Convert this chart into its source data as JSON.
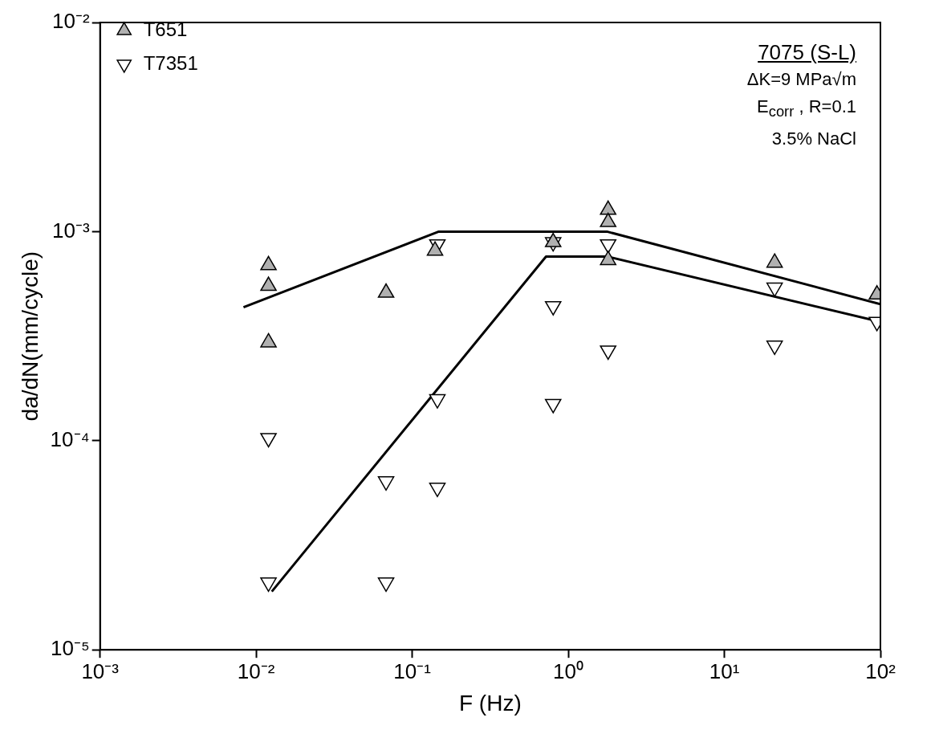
{
  "chart_data": {
    "type": "scatter",
    "xlabel": "F (Hz)",
    "ylabel": "da/dN(mm/cycle)",
    "log": "xy",
    "legend": "top left",
    "xlim": [
      0.001,
      100
    ],
    "xticks": [
      {
        "value": 0.001,
        "label": "10⁻³"
      },
      {
        "value": 0.01,
        "label": "10⁻²"
      },
      {
        "value": 0.1,
        "label": "10⁻¹"
      },
      {
        "value": 1,
        "label": "10⁰"
      },
      {
        "value": 10,
        "label": "10¹"
      },
      {
        "value": 100,
        "label": "10²"
      }
    ],
    "ylim": [
      1e-05,
      0.01
    ],
    "yticks": [
      {
        "value": 1e-05,
        "label": "10⁻⁵"
      },
      {
        "value": 0.0001,
        "label": "10⁻⁴"
      },
      {
        "value": 0.001,
        "label": "10⁻³"
      },
      {
        "value": 0.01,
        "label": "10⁻²"
      }
    ],
    "annotations": [
      "7075 (S-L)",
      "ΔK=9 MPa√m",
      "E$_{corr}$ , R=0.1",
      "3.5% NaCl"
    ],
    "series": [
      {
        "name": "T651",
        "type": "scatter",
        "marker": "triangle",
        "color": "#b0b0b0",
        "x": [
          0.012,
          0.012,
          0.012,
          0.068,
          0.14,
          0.8,
          1.8,
          1.8,
          1.8,
          21,
          95
        ],
        "values": [
          0.00069,
          0.00055,
          0.000295,
          0.00051,
          0.00081,
          0.00089,
          0.00127,
          0.00111,
          0.00073,
          0.00071,
          0.0005
        ]
      },
      {
        "name": "T7351",
        "type": "scatter",
        "marker": "triangle-down",
        "color": "#ffffff",
        "x": [
          0.012,
          0.012,
          0.068,
          0.068,
          0.145,
          0.145,
          0.145,
          0.8,
          0.8,
          0.8,
          1.8,
          1.8,
          21,
          21,
          95
        ],
        "values": [
          0.000103,
          2.1e-05,
          6.4e-05,
          2.1e-05,
          0.00087,
          0.000158,
          5.96e-05,
          0.00089,
          0.00044,
          0.00015,
          0.00087,
          0.00027,
          0.00054,
          0.000285,
          0.00037
        ]
      },
      {
        "type": "line",
        "marker": "none",
        "line_style": "solid",
        "color": "#000000",
        "x": [
          0.0083,
          0.148,
          1.77,
          100
        ],
        "values": [
          0.000435,
          0.001,
          0.001,
          0.00045
        ]
      },
      {
        "type": "line",
        "marker": "none",
        "line_style": "solid",
        "color": "#000000",
        "x": [
          0.0126,
          0.72,
          1.77,
          100
        ],
        "values": [
          1.9e-05,
          0.00076,
          0.00076,
          0.00037
        ]
      }
    ]
  }
}
